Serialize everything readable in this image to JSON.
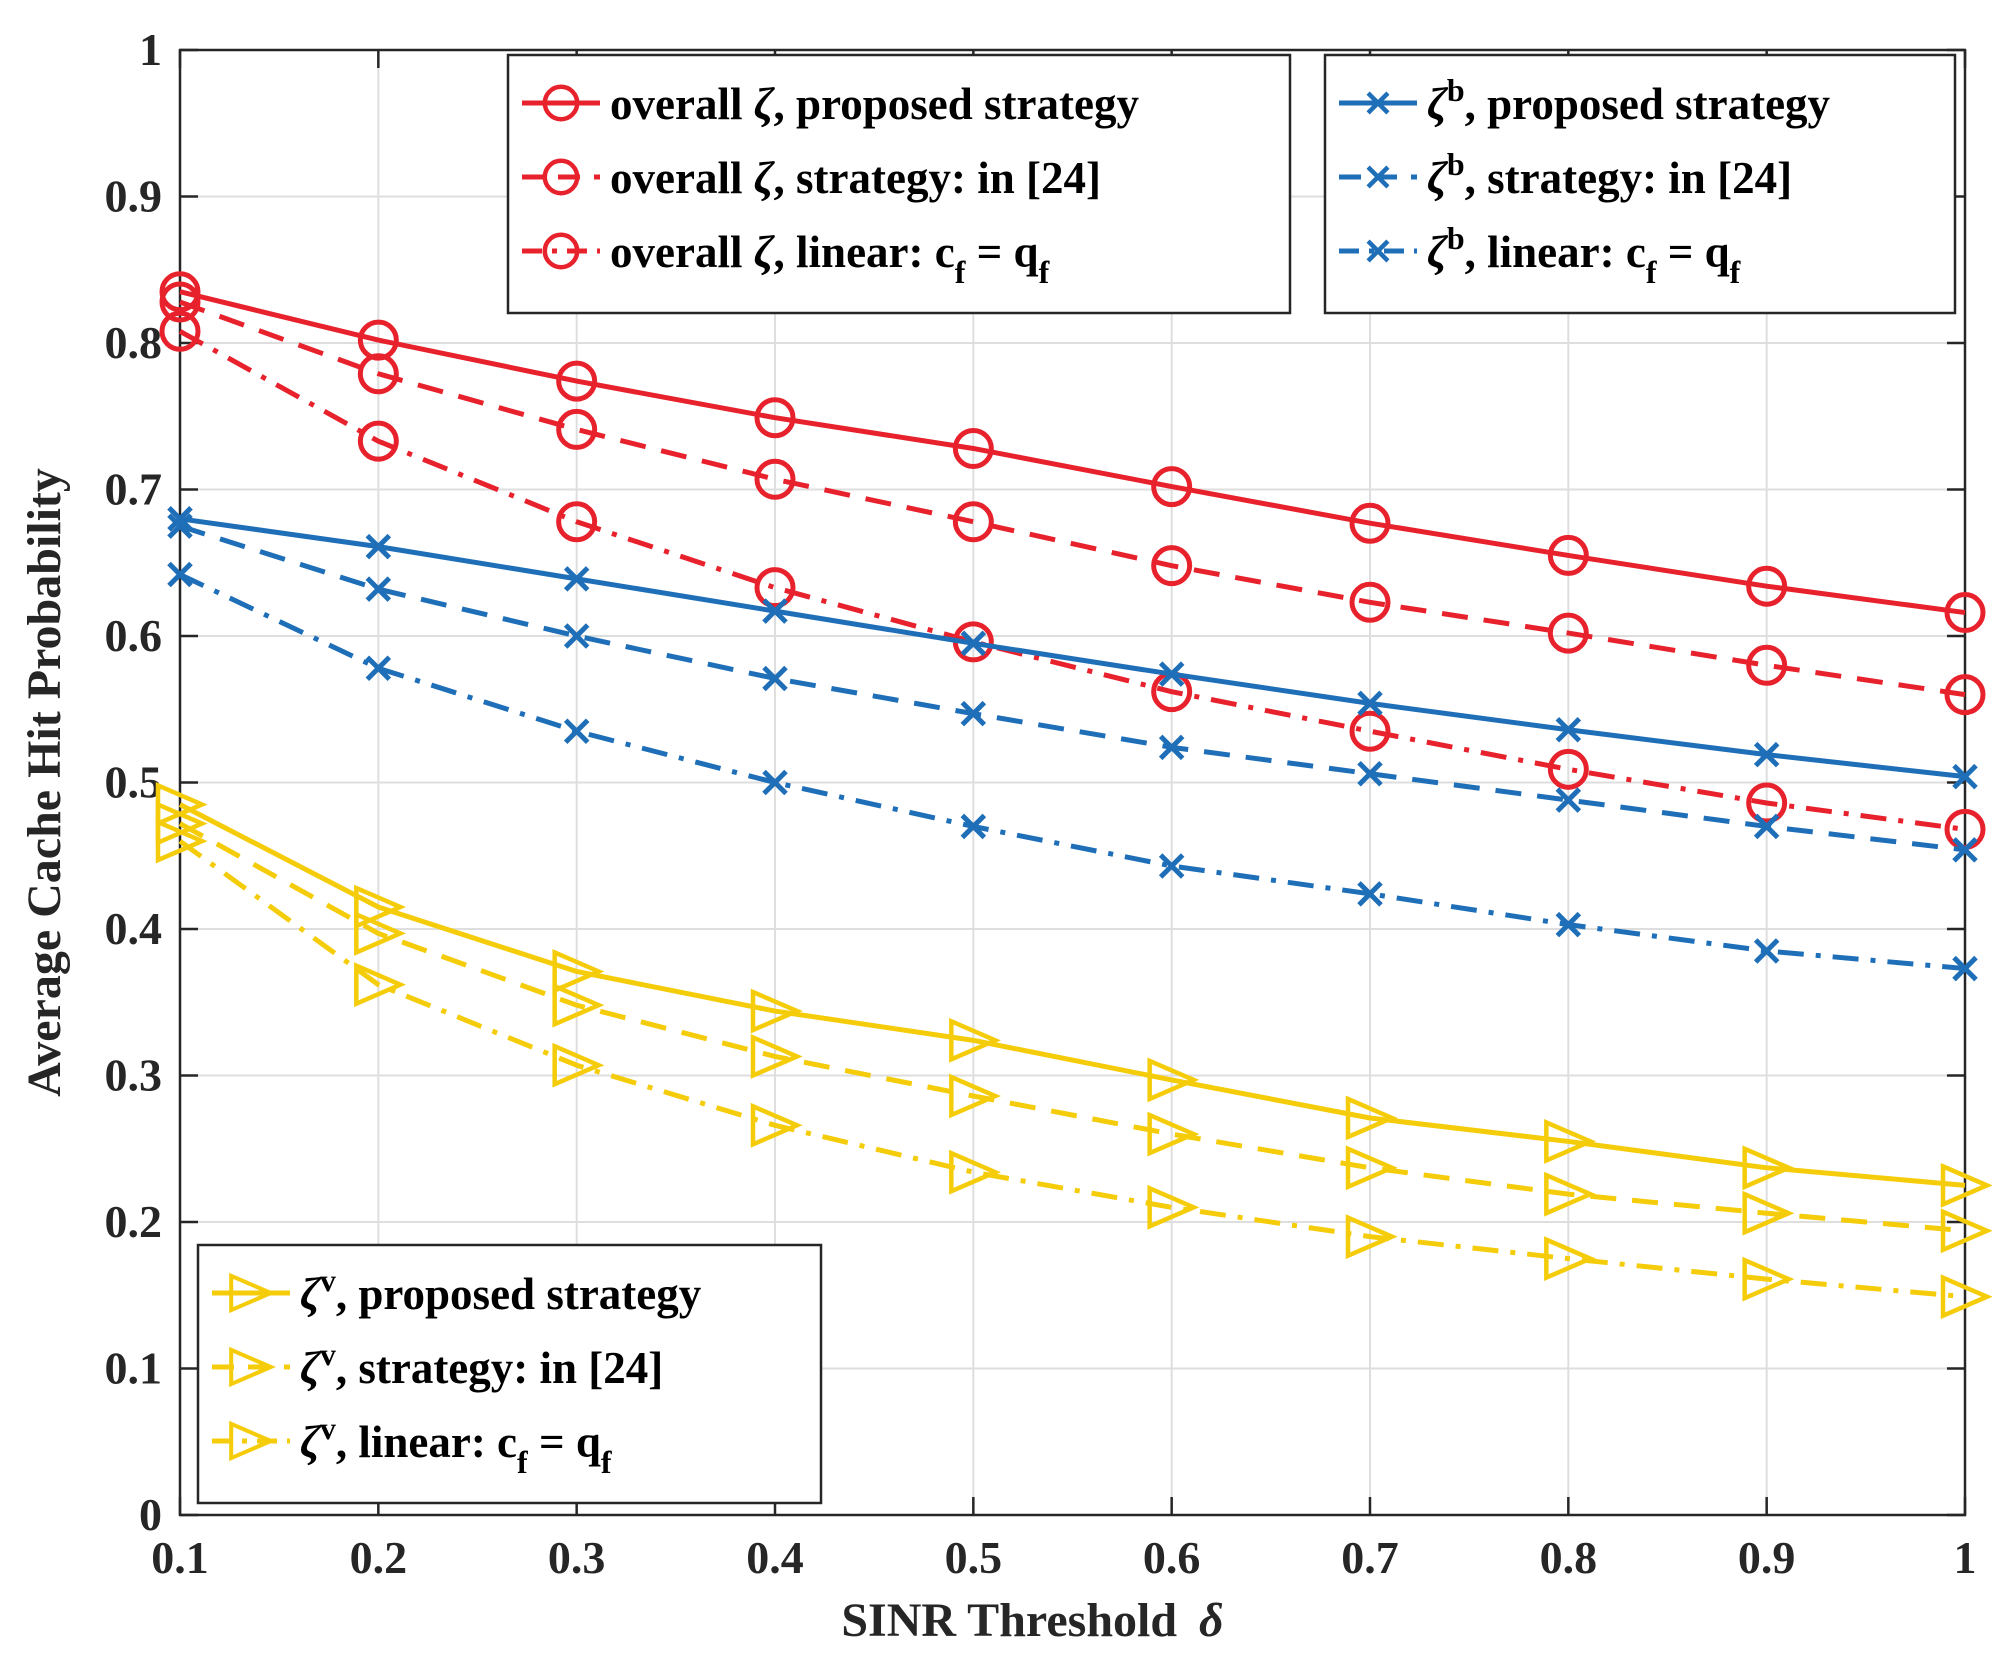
{
  "chart_data": {
    "type": "line",
    "title": "",
    "xlabel": "SINR Threshold",
    "xlabel_symbol": "δ",
    "ylabel": "Average Cache Hit Probability",
    "xlim": [
      0.1,
      1
    ],
    "ylim": [
      0,
      1
    ],
    "grid": true,
    "x": [
      0.1,
      0.2,
      0.3,
      0.4,
      0.5,
      0.6,
      0.7,
      0.8,
      0.9,
      1.0
    ],
    "x_ticks": [
      "0.1",
      "0.2",
      "0.3",
      "0.4",
      "0.5",
      "0.6",
      "0.7",
      "0.8",
      "0.9",
      "1"
    ],
    "y_ticks": [
      "0",
      "0.1",
      "0.2",
      "0.3",
      "0.4",
      "0.5",
      "0.6",
      "0.7",
      "0.8",
      "0.9",
      "1"
    ],
    "colors": {
      "red": "#E8222C",
      "blue": "#1F6FB8",
      "yellow": "#F5CC0A"
    },
    "series": [
      {
        "id": "overall-proposed",
        "name": "overall ζ, proposed strategy",
        "color": "red",
        "dash": "solid",
        "marker": "circle",
        "values": [
          0.835,
          0.802,
          0.774,
          0.749,
          0.728,
          0.702,
          0.677,
          0.655,
          0.634,
          0.616
        ]
      },
      {
        "id": "overall-ref24",
        "name": "overall ζ, strategy: in [24]",
        "color": "red",
        "dash": "dashed",
        "marker": "circle",
        "values": [
          0.828,
          0.779,
          0.741,
          0.707,
          0.678,
          0.648,
          0.623,
          0.602,
          0.58,
          0.56
        ]
      },
      {
        "id": "overall-linear",
        "name": "overall ζ, linear: c_f = q_f",
        "color": "red",
        "dash": "dashdot",
        "marker": "circle",
        "values": [
          0.808,
          0.733,
          0.678,
          0.633,
          0.596,
          0.562,
          0.535,
          0.509,
          0.486,
          0.468
        ]
      },
      {
        "id": "zb-proposed",
        "name": "ζ^b, proposed strategy",
        "color": "blue",
        "dash": "solid",
        "marker": "x",
        "values": [
          0.68,
          0.661,
          0.639,
          0.617,
          0.595,
          0.574,
          0.554,
          0.536,
          0.519,
          0.504
        ]
      },
      {
        "id": "zb-ref24",
        "name": "ζ^b, strategy: in [24]",
        "color": "blue",
        "dash": "dashed",
        "marker": "x",
        "values": [
          0.675,
          0.632,
          0.6,
          0.571,
          0.547,
          0.524,
          0.506,
          0.488,
          0.47,
          0.454
        ]
      },
      {
        "id": "zb-linear",
        "name": "ζ^b, linear: c_f = q_f",
        "color": "blue",
        "dash": "dashdot",
        "marker": "x",
        "values": [
          0.642,
          0.578,
          0.535,
          0.5,
          0.47,
          0.443,
          0.424,
          0.403,
          0.385,
          0.373
        ]
      },
      {
        "id": "zv-proposed",
        "name": "ζ^v, proposed strategy",
        "color": "yellow",
        "dash": "solid",
        "marker": "triangle",
        "values": [
          0.485,
          0.415,
          0.371,
          0.344,
          0.324,
          0.297,
          0.271,
          0.255,
          0.237,
          0.225
        ]
      },
      {
        "id": "zv-ref24",
        "name": "ζ^v, strategy: in [24]",
        "color": "yellow",
        "dash": "dashed",
        "marker": "triangle",
        "values": [
          0.472,
          0.397,
          0.348,
          0.313,
          0.286,
          0.26,
          0.237,
          0.219,
          0.206,
          0.194
        ]
      },
      {
        "id": "zv-linear",
        "name": "ζ^v, linear: c_f = q_f",
        "color": "yellow",
        "dash": "dashdot",
        "marker": "triangle",
        "values": [
          0.46,
          0.362,
          0.307,
          0.266,
          0.234,
          0.21,
          0.19,
          0.175,
          0.161,
          0.149
        ]
      }
    ],
    "legends": [
      {
        "id": "legend-overall",
        "placement": "top-center",
        "series": [
          "overall-proposed",
          "overall-ref24",
          "overall-linear"
        ],
        "entries": [
          {
            "prefix": "overall ",
            "symbol": "ζ",
            "sup": "",
            "suffix": ", proposed strategy",
            "sub1": "",
            "eq": "",
            "sub2": ""
          },
          {
            "prefix": "overall ",
            "symbol": "ζ",
            "sup": "",
            "suffix": ", strategy: in [24]",
            "sub1": "",
            "eq": "",
            "sub2": ""
          },
          {
            "prefix": "overall ",
            "symbol": "ζ",
            "sup": "",
            "suffix": ", linear: c",
            "sub1": "f",
            "eq": " = q",
            "sub2": "f"
          }
        ]
      },
      {
        "id": "legend-zeta-b",
        "placement": "top-right",
        "series": [
          "zb-proposed",
          "zb-ref24",
          "zb-linear"
        ],
        "entries": [
          {
            "prefix": "",
            "symbol": "ζ",
            "sup": "b",
            "suffix": ", proposed strategy",
            "sub1": "",
            "eq": "",
            "sub2": ""
          },
          {
            "prefix": "",
            "symbol": "ζ",
            "sup": "b",
            "suffix": ", strategy: in [24]",
            "sub1": "",
            "eq": "",
            "sub2": ""
          },
          {
            "prefix": "",
            "symbol": "ζ",
            "sup": "b",
            "suffix": ", linear: c",
            "sub1": "f",
            "eq": " = q",
            "sub2": "f"
          }
        ]
      },
      {
        "id": "legend-zeta-v",
        "placement": "bottom-left",
        "series": [
          "zv-proposed",
          "zv-ref24",
          "zv-linear"
        ],
        "entries": [
          {
            "prefix": "",
            "symbol": "ζ",
            "sup": "v",
            "suffix": ", proposed strategy",
            "sub1": "",
            "eq": "",
            "sub2": ""
          },
          {
            "prefix": "",
            "symbol": "ζ",
            "sup": "v",
            "suffix": ", strategy: in [24]",
            "sub1": "",
            "eq": "",
            "sub2": ""
          },
          {
            "prefix": "",
            "symbol": "ζ",
            "sup": "v",
            "suffix": ", linear: c",
            "sub1": "f",
            "eq": " = q",
            "sub2": "f"
          }
        ]
      }
    ]
  }
}
